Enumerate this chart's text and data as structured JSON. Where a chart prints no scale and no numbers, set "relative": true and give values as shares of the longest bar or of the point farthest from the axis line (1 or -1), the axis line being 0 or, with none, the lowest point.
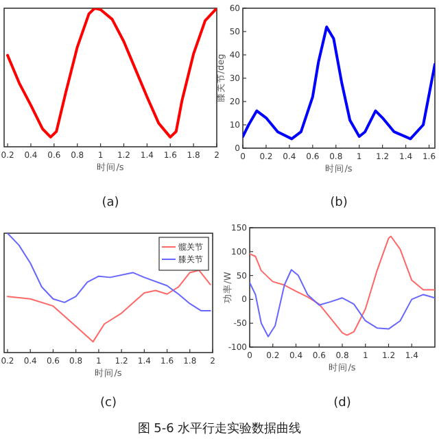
{
  "chart_data": [
    {
      "type": "line",
      "relative": true,
      "xlabel": "时间/s",
      "annotations": [
        "(a)"
      ],
      "xlim": [
        0.17,
        2
      ],
      "xticks": [
        0.2,
        0.4,
        0.6,
        0.8,
        1,
        1.2,
        1.4,
        1.6,
        1.8,
        2
      ],
      "grid": false,
      "legend": false,
      "series": [
        {
          "color": "#ff0000",
          "x": [
            0.2,
            0.3,
            0.4,
            0.5,
            0.57,
            0.62,
            0.7,
            0.8,
            0.9,
            0.95,
            1.0,
            1.1,
            1.2,
            1.3,
            1.4,
            1.5,
            1.6,
            1.65,
            1.7,
            1.8,
            1.9,
            2.0
          ],
          "values": [
            0.66,
            0.46,
            0.3,
            0.13,
            0.07,
            0.11,
            0.39,
            0.72,
            0.96,
            1,
            0.99,
            0.92,
            0.76,
            0.56,
            0.36,
            0.17,
            0.07,
            0.11,
            0.33,
            0.67,
            0.91,
            1
          ]
        }
      ]
    },
    {
      "type": "line",
      "xlabel": "时间/s",
      "ylabel": "膝关节/deg",
      "annotations": [
        "(b)"
      ],
      "xlim": [
        0,
        1.65
      ],
      "xticks": [
        0,
        0.2,
        0.4,
        0.6,
        0.8,
        1,
        1.2,
        1.4,
        1.6
      ],
      "ylim": [
        0,
        60
      ],
      "yticks": [
        0,
        10,
        20,
        30,
        40,
        50,
        60
      ],
      "grid": false,
      "legend": false,
      "series": [
        {
          "color": "#0000ff",
          "x": [
            0,
            0.05,
            0.12,
            0.2,
            0.3,
            0.42,
            0.5,
            0.6,
            0.65,
            0.72,
            0.78,
            0.85,
            0.92,
            1.0,
            1.05,
            1.14,
            1.2,
            1.3,
            1.44,
            1.55,
            1.65
          ],
          "values": [
            5,
            10,
            16,
            13,
            7,
            4,
            7,
            22,
            37,
            52,
            47,
            28,
            12,
            5,
            7,
            16,
            13,
            7,
            4,
            10,
            36
          ]
        }
      ]
    },
    {
      "type": "line",
      "relative": true,
      "xlabel": "时间/s",
      "annotations": [
        "(c)"
      ],
      "xlim": [
        0.17,
        2
      ],
      "xticks": [
        0.2,
        0.4,
        0.6,
        0.8,
        1,
        1.2,
        1.4,
        1.6,
        1.8,
        2
      ],
      "grid": false,
      "legend": "top right",
      "series": [
        {
          "name": "髋关节",
          "color": "#ff6666",
          "x": [
            0.2,
            0.4,
            0.6,
            0.8,
            0.95,
            1.05,
            1.2,
            1.4,
            1.5,
            1.6,
            1.7,
            1.8,
            1.88,
            1.98
          ],
          "values": [
            0.47,
            0.45,
            0.39,
            0.22,
            0.09,
            0.24,
            0.33,
            0.5,
            0.52,
            0.49,
            0.55,
            0.67,
            0.69,
            0.57
          ]
        },
        {
          "name": "膝关节",
          "color": "#6666ff",
          "x": [
            0.2,
            0.3,
            0.4,
            0.5,
            0.6,
            0.7,
            0.8,
            0.9,
            1.0,
            1.1,
            1.3,
            1.4,
            1.6,
            1.7,
            1.8,
            1.9,
            1.98
          ],
          "values": [
            1,
            0.9,
            0.75,
            0.55,
            0.45,
            0.42,
            0.47,
            0.59,
            0.64,
            0.63,
            0.67,
            0.63,
            0.56,
            0.49,
            0.41,
            0.35,
            0.35
          ]
        }
      ]
    },
    {
      "type": "line",
      "xlabel": "时间/s",
      "ylabel": "功率/W",
      "annotations": [
        "(d)"
      ],
      "xlim": [
        0,
        1.6
      ],
      "xticks": [
        0,
        0.2,
        0.4,
        0.6,
        0.8,
        1,
        1.2,
        1.4
      ],
      "ylim": [
        -100,
        150
      ],
      "yticks": [
        -100,
        -50,
        0,
        50,
        100,
        150
      ],
      "grid": false,
      "legend": false,
      "series": [
        {
          "color": "#ff6666",
          "x": [
            0,
            0.05,
            0.1,
            0.2,
            0.3,
            0.4,
            0.5,
            0.6,
            0.7,
            0.8,
            0.84,
            0.9,
            1.0,
            1.1,
            1.2,
            1.22,
            1.3,
            1.4,
            1.5,
            1.6
          ],
          "values": [
            95,
            90,
            60,
            37,
            30,
            17,
            5,
            -10,
            -40,
            -70,
            -75,
            -68,
            -20,
            60,
            128,
            132,
            105,
            40,
            20,
            20
          ]
        },
        {
          "color": "#6666ff",
          "x": [
            0,
            0.05,
            0.1,
            0.16,
            0.22,
            0.3,
            0.36,
            0.42,
            0.5,
            0.6,
            0.7,
            0.8,
            0.9,
            1.0,
            1.1,
            1.2,
            1.3,
            1.4,
            1.5,
            1.6
          ],
          "values": [
            35,
            10,
            -50,
            -78,
            -55,
            30,
            62,
            50,
            10,
            -12,
            -5,
            3,
            -10,
            -45,
            -60,
            -62,
            -45,
            0,
            10,
            3
          ]
        }
      ]
    },
    {
      "type": "other",
      "title": "图 5-6 水平行走实验数据曲线"
    }
  ]
}
